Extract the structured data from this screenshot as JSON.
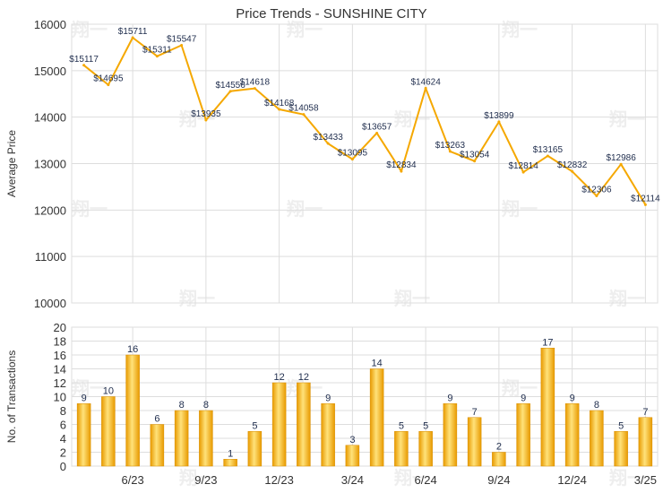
{
  "chart_data": [
    {
      "type": "line",
      "title": "Price Trends - SUNSHINE CITY",
      "ylabel": "Average Price",
      "ylim": [
        10000,
        16000
      ],
      "yticks": [
        "10000",
        "11000",
        "12000",
        "13000",
        "14000",
        "15000",
        "16000"
      ],
      "grid": true,
      "color": "#f5a800",
      "series": [
        {
          "values": [
            15117,
            14695,
            15711,
            15311,
            15547,
            13935,
            14556,
            14618,
            14168,
            14058,
            13433,
            13095,
            13657,
            12834,
            14624,
            13263,
            13054,
            13899,
            12814,
            13165,
            12832,
            12306,
            12986,
            12114
          ],
          "labels": [
            "$15117",
            "$14695",
            "$15711",
            "$15311",
            "$15547",
            "$13935",
            "$14556",
            "$14618",
            "$14168",
            "$14058",
            "$13433",
            "$13095",
            "$13657",
            "$12834",
            "$14624",
            "$13263",
            "$13054",
            "$13899",
            "$12814",
            "$13165",
            "$12832",
            "$12306",
            "$12986",
            "$12114"
          ]
        }
      ]
    },
    {
      "type": "bar",
      "ylabel": "No. of Transactions",
      "ylim": [
        0,
        20
      ],
      "yticks": [
        "0",
        "2",
        "4",
        "6",
        "8",
        "10",
        "12",
        "14",
        "16",
        "18",
        "20"
      ],
      "xticks": [
        "6/23",
        "9/23",
        "12/23",
        "3/24",
        "6/24",
        "9/24",
        "12/24",
        "3/25"
      ],
      "grid": true,
      "color": "#f5a800",
      "values": [
        9,
        10,
        16,
        6,
        8,
        8,
        1,
        5,
        12,
        12,
        9,
        3,
        14,
        5,
        5,
        9,
        7,
        2,
        9,
        17,
        9,
        8,
        5,
        7
      ]
    }
  ],
  "watermark": "翔一"
}
